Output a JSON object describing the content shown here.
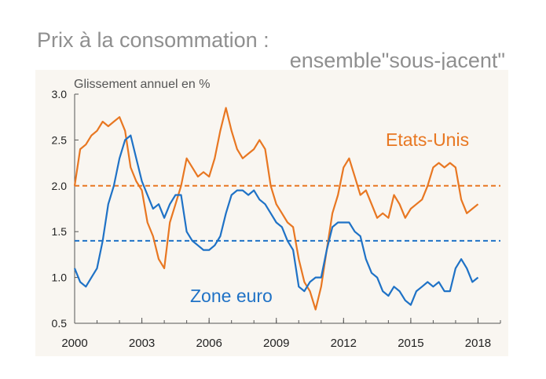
{
  "header": {
    "title_line1": "Prix à la consommation :",
    "title_line2": "ensemble\"sous-jacent\""
  },
  "chart_data": {
    "type": "line",
    "title": "Prix à la consommation : ensemble\"sous-jacent\"",
    "ylabel": "Glissement annuel en %",
    "xlabel": "",
    "xlim": [
      2000,
      2019.0
    ],
    "ylim": [
      0.5,
      3.0
    ],
    "x_ticks": [
      2000,
      2003,
      2006,
      2009,
      2012,
      2015,
      2018
    ],
    "x_tick_labels": [
      "2000",
      "2003",
      "2006",
      "2009",
      "2012",
      "2015",
      "2018"
    ],
    "y_ticks": [
      0.5,
      1.0,
      1.5,
      2.0,
      2.5,
      3.0
    ],
    "y_tick_labels": [
      "0.5",
      "1.0",
      "1.5",
      "2.0",
      "2.5",
      "3.0"
    ],
    "grid": false,
    "colors": {
      "us": "#e87722",
      "ez": "#1f72c6",
      "background": "#f9f6f1",
      "axis": "#555555"
    },
    "reference_lines": [
      {
        "series": "Etats-Unis",
        "y": 2.0
      },
      {
        "series": "Zone euro",
        "y": 1.4
      }
    ],
    "series": [
      {
        "name": "Etats-Unis",
        "label": "Etats-Unis",
        "x": [
          2000.0,
          2000.25,
          2000.5,
          2000.75,
          2001.0,
          2001.25,
          2001.5,
          2001.75,
          2002.0,
          2002.25,
          2002.5,
          2002.75,
          2003.0,
          2003.25,
          2003.5,
          2003.75,
          2004.0,
          2004.25,
          2004.5,
          2004.75,
          2005.0,
          2005.25,
          2005.5,
          2005.75,
          2006.0,
          2006.25,
          2006.5,
          2006.75,
          2007.0,
          2007.25,
          2007.5,
          2007.75,
          2008.0,
          2008.25,
          2008.5,
          2008.75,
          2009.0,
          2009.25,
          2009.5,
          2009.75,
          2010.0,
          2010.25,
          2010.5,
          2010.75,
          2011.0,
          2011.25,
          2011.5,
          2011.75,
          2012.0,
          2012.25,
          2012.5,
          2012.75,
          2013.0,
          2013.25,
          2013.5,
          2013.75,
          2014.0,
          2014.25,
          2014.5,
          2014.75,
          2015.0,
          2015.25,
          2015.5,
          2015.75,
          2016.0,
          2016.25,
          2016.5,
          2016.75,
          2017.0,
          2017.25,
          2017.5,
          2017.75,
          2018.0
        ],
        "values": [
          2.0,
          2.4,
          2.45,
          2.55,
          2.6,
          2.7,
          2.65,
          2.7,
          2.75,
          2.6,
          2.2,
          2.05,
          1.95,
          1.6,
          1.45,
          1.2,
          1.1,
          1.6,
          1.8,
          2.0,
          2.3,
          2.2,
          2.1,
          2.15,
          2.1,
          2.3,
          2.6,
          2.85,
          2.6,
          2.4,
          2.3,
          2.35,
          2.4,
          2.5,
          2.4,
          2.0,
          1.8,
          1.7,
          1.6,
          1.55,
          1.2,
          0.95,
          0.85,
          0.65,
          0.9,
          1.3,
          1.7,
          1.9,
          2.2,
          2.3,
          2.1,
          1.9,
          1.95,
          1.8,
          1.65,
          1.7,
          1.65,
          1.9,
          1.8,
          1.65,
          1.75,
          1.8,
          1.85,
          2.0,
          2.2,
          2.25,
          2.2,
          2.25,
          2.2,
          1.85,
          1.7,
          1.75,
          1.8
        ]
      },
      {
        "name": "Zone euro",
        "label": "Zone euro",
        "x": [
          2000.0,
          2000.25,
          2000.5,
          2000.75,
          2001.0,
          2001.25,
          2001.5,
          2001.75,
          2002.0,
          2002.25,
          2002.5,
          2002.75,
          2003.0,
          2003.25,
          2003.5,
          2003.75,
          2004.0,
          2004.25,
          2004.5,
          2004.75,
          2005.0,
          2005.25,
          2005.5,
          2005.75,
          2006.0,
          2006.25,
          2006.5,
          2006.75,
          2007.0,
          2007.25,
          2007.5,
          2007.75,
          2008.0,
          2008.25,
          2008.5,
          2008.75,
          2009.0,
          2009.25,
          2009.5,
          2009.75,
          2010.0,
          2010.25,
          2010.5,
          2010.75,
          2011.0,
          2011.25,
          2011.5,
          2011.75,
          2012.0,
          2012.25,
          2012.5,
          2012.75,
          2013.0,
          2013.25,
          2013.5,
          2013.75,
          2014.0,
          2014.25,
          2014.5,
          2014.75,
          2015.0,
          2015.25,
          2015.5,
          2015.75,
          2016.0,
          2016.25,
          2016.5,
          2016.75,
          2017.0,
          2017.25,
          2017.5,
          2017.75,
          2018.0
        ],
        "values": [
          1.1,
          0.95,
          0.9,
          1.0,
          1.1,
          1.4,
          1.8,
          2.0,
          2.3,
          2.5,
          2.55,
          2.3,
          2.05,
          1.9,
          1.75,
          1.8,
          1.65,
          1.8,
          1.9,
          1.9,
          1.5,
          1.4,
          1.35,
          1.3,
          1.3,
          1.35,
          1.45,
          1.7,
          1.9,
          1.95,
          1.95,
          1.9,
          1.95,
          1.85,
          1.8,
          1.7,
          1.6,
          1.55,
          1.4,
          1.3,
          0.9,
          0.85,
          0.95,
          1.0,
          1.0,
          1.3,
          1.55,
          1.6,
          1.6,
          1.6,
          1.5,
          1.45,
          1.2,
          1.05,
          1.0,
          0.85,
          0.8,
          0.9,
          0.85,
          0.75,
          0.7,
          0.85,
          0.9,
          0.95,
          0.9,
          0.95,
          0.85,
          0.85,
          1.1,
          1.2,
          1.1,
          0.95,
          1.0
        ]
      }
    ]
  }
}
